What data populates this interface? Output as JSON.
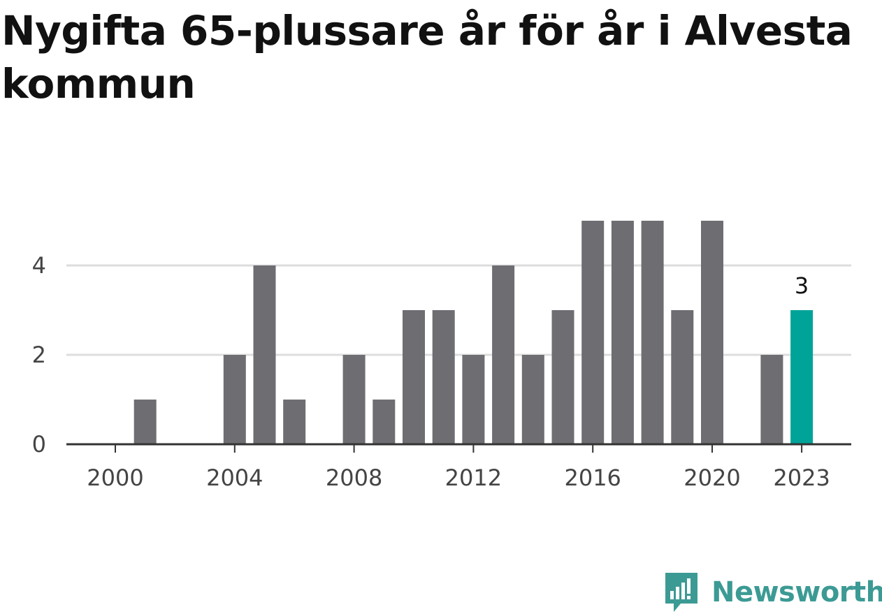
{
  "chart_data": {
    "type": "bar",
    "title": "Nygifta 65-plussare år för år i Alvesta kommun",
    "xlabel": "",
    "ylabel": "",
    "years": [
      2000,
      2001,
      2002,
      2003,
      2004,
      2005,
      2006,
      2007,
      2008,
      2009,
      2010,
      2011,
      2012,
      2013,
      2014,
      2015,
      2016,
      2017,
      2018,
      2019,
      2020,
      2021,
      2022,
      2023
    ],
    "values": [
      0,
      1,
      0,
      0,
      2,
      4,
      1,
      0,
      2,
      1,
      3,
      3,
      2,
      4,
      2,
      3,
      5,
      5,
      5,
      3,
      5,
      0,
      2,
      3
    ],
    "x_tick_labels": [
      "2000",
      "2004",
      "2008",
      "2012",
      "2016",
      "2020",
      "2023"
    ],
    "y_ticks": [
      0,
      2,
      4
    ],
    "ylim": [
      0,
      5
    ],
    "grid": true,
    "legend": "none",
    "highlight": {
      "year": 2023,
      "label": "3"
    },
    "colors": {
      "bar": "#6e6d72",
      "highlight": "#00a398",
      "grid": "#dddddd",
      "axis": "#333333"
    }
  },
  "brand": {
    "name": "Newsworthy",
    "color": "#3c9a94",
    "icon": "newsworthy-logo-icon"
  }
}
